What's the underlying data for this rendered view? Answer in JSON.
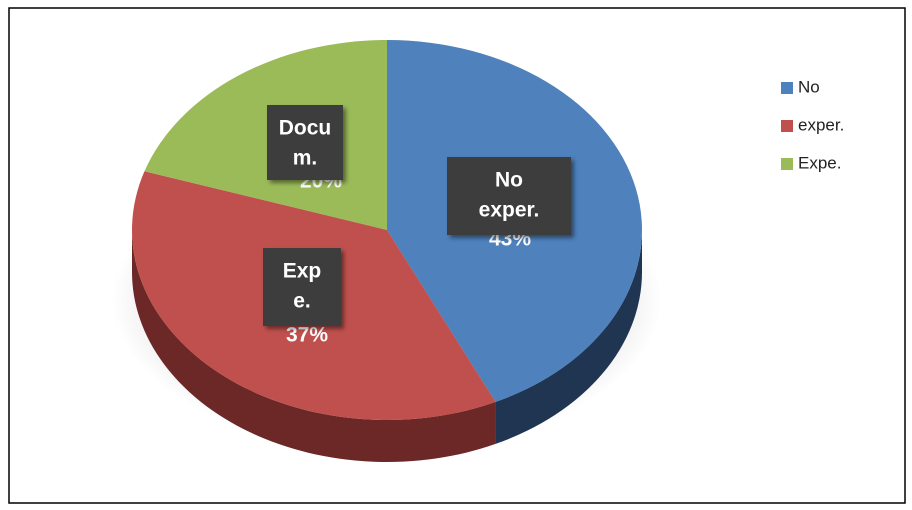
{
  "chart_data": {
    "type": "pie3d",
    "categories": [
      [
        "No",
        "exper."
      ],
      [
        "Exp",
        "e."
      ],
      [
        "Docu",
        "m."
      ]
    ],
    "legend": [
      "No",
      "exper.",
      "Expe."
    ],
    "values": [
      43,
      37,
      20
    ],
    "value_labels": [
      "43%",
      "37%",
      "20%"
    ],
    "colors": [
      "#4f81bd",
      "#c0504d",
      "#9bbb59"
    ],
    "side_colors": [
      "#1f3552",
      "#6b2826",
      "#5d7434"
    ]
  }
}
